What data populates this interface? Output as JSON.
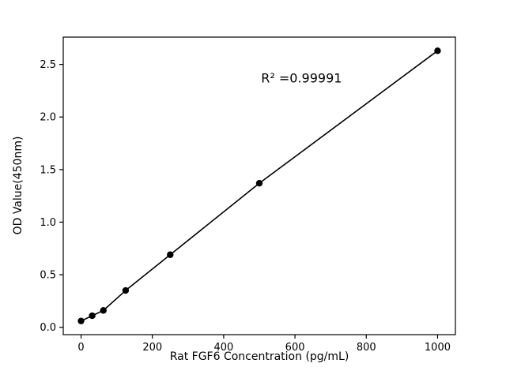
{
  "chart_data": {
    "type": "scatter",
    "title": "",
    "xlabel": "Rat FGF6 Concentration (pg/mL)",
    "ylabel": "OD Value(450nm)",
    "x": [
      0,
      31.25,
      62.5,
      125,
      250,
      500,
      1000
    ],
    "y": [
      0.06,
      0.11,
      0.16,
      0.35,
      0.69,
      1.37,
      2.63
    ],
    "line_through_points": true,
    "marker_color": "#000000",
    "line_color": "#000000",
    "xlim": [
      -50,
      1050
    ],
    "ylim": [
      -0.07,
      2.76
    ],
    "xticks": [
      0,
      200,
      400,
      600,
      800,
      1000
    ],
    "xtick_labels": [
      "0",
      "200",
      "400",
      "600",
      "800",
      "1000"
    ],
    "yticks": [
      0.0,
      0.5,
      1.0,
      1.5,
      2.0,
      2.5
    ],
    "ytick_labels": [
      "0.0",
      "0.5",
      "1.0",
      "1.5",
      "2.0",
      "2.5"
    ],
    "grid": false,
    "legend": null,
    "annotation": {
      "text": "R² =0.99991",
      "x": 505,
      "y": 2.33
    }
  }
}
